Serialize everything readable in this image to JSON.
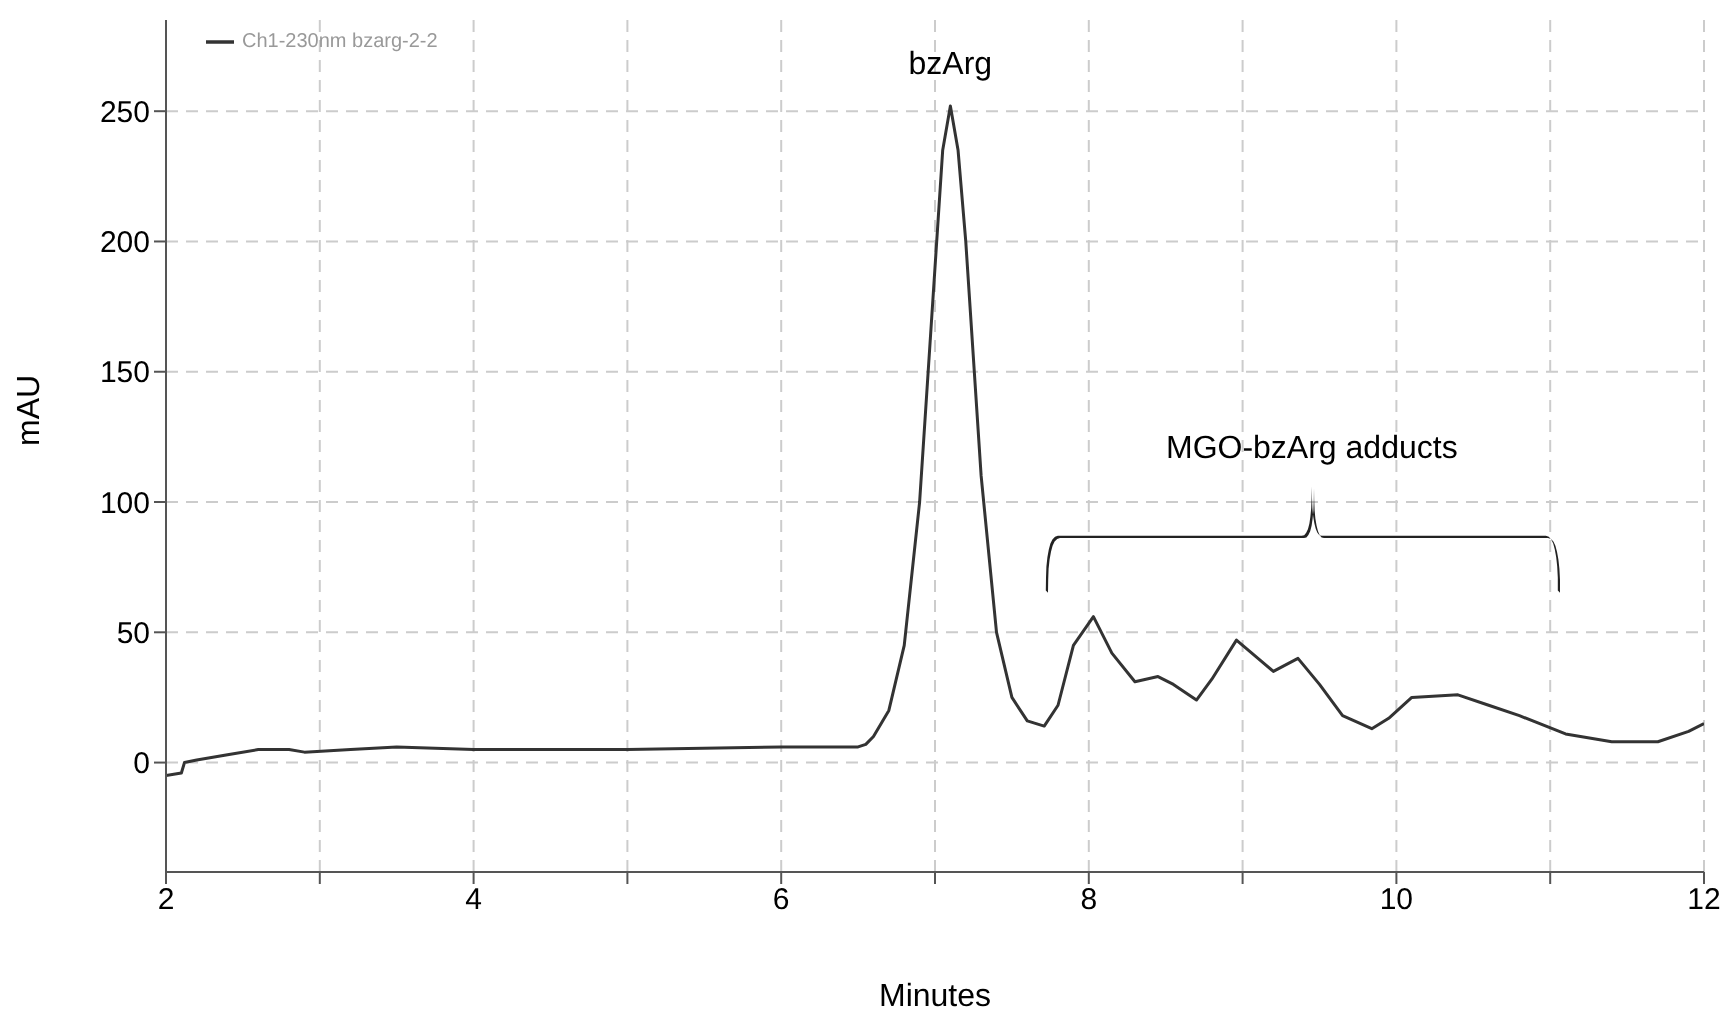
{
  "chart_data": {
    "type": "line",
    "xlabel": "Minutes",
    "ylabel": "mAU",
    "xlim": [
      2,
      12
    ],
    "ylim": [
      -42,
      285
    ],
    "xticks": [
      2,
      {
        "value": 3,
        "label": null
      },
      4,
      {
        "value": 5,
        "label": null
      },
      6,
      {
        "value": 7,
        "label": null
      },
      8,
      {
        "value": 9,
        "label": null
      },
      10,
      {
        "value": 11,
        "label": null
      },
      12
    ],
    "yticks": [
      0,
      50,
      100,
      150,
      200,
      250
    ],
    "grid": true,
    "legend": "top left",
    "marker": "none",
    "line_style": "solid",
    "annotations": [
      {
        "text": "bzArg",
        "x": 7.1,
        "y": 252
      },
      "MGO-bzArg adducts"
    ],
    "series": [
      {
        "name": "Ch1-230nm bzarg-2-2",
        "color": "#333333",
        "x": [
          2,
          2.1,
          2.12,
          2.2,
          2.4,
          2.6,
          2.8,
          2.9,
          3.2,
          3.5,
          4,
          5,
          6,
          6.5,
          6.55,
          6.6,
          6.7,
          6.8,
          6.9,
          7,
          7.05,
          7.1,
          7.15,
          7.2,
          7.3,
          7.4,
          7.5,
          7.6,
          7.71,
          7.8,
          7.9,
          8.03,
          8.15,
          8.3,
          8.45,
          8.55,
          8.7,
          8.8,
          8.96,
          9.1,
          9.2,
          9.36,
          9.5,
          9.65,
          9.84,
          9.95,
          10.1,
          10.4,
          10.6,
          10.8,
          11.1,
          11.4,
          11.7,
          11.9,
          12
        ],
        "values": [
          -5,
          -4,
          0,
          1,
          3,
          5,
          5,
          4,
          5,
          6,
          5,
          5,
          6,
          6,
          7,
          10,
          20,
          45,
          100,
          190,
          235,
          252,
          235,
          200,
          110,
          50,
          25,
          16,
          14,
          22,
          45,
          56,
          42,
          31,
          33,
          30,
          24,
          32,
          47,
          40,
          35,
          40,
          30,
          18,
          13,
          17,
          25,
          26,
          22,
          18,
          11,
          8,
          8,
          12,
          15
        ]
      }
    ]
  }
}
